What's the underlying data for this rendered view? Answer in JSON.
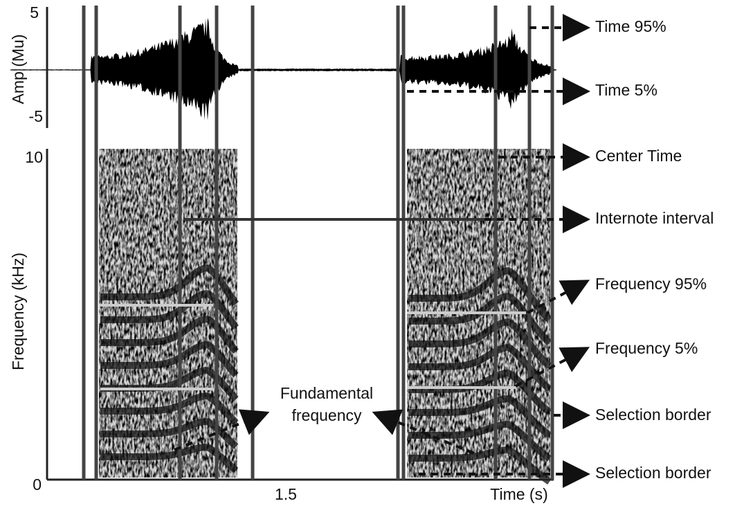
{
  "oscillogram": {
    "y_axis_label": "Amp (Mu)",
    "y_ticks": [
      "5",
      "-5"
    ]
  },
  "spectrogram": {
    "y_axis_label": "Frequency (kHz)",
    "y_ticks": [
      "10",
      "0"
    ],
    "x_ticks": [
      "1.5"
    ],
    "x_axis_label": "Time (s)"
  },
  "annotations": [
    "Time 95%",
    "Time 5%",
    "Center Time",
    "Internote interval",
    "Frequency 95%",
    "Frequency 5%",
    "Selection border",
    "Selection border"
  ],
  "fundamental_label": [
    "Fundamental",
    "frequency"
  ]
}
